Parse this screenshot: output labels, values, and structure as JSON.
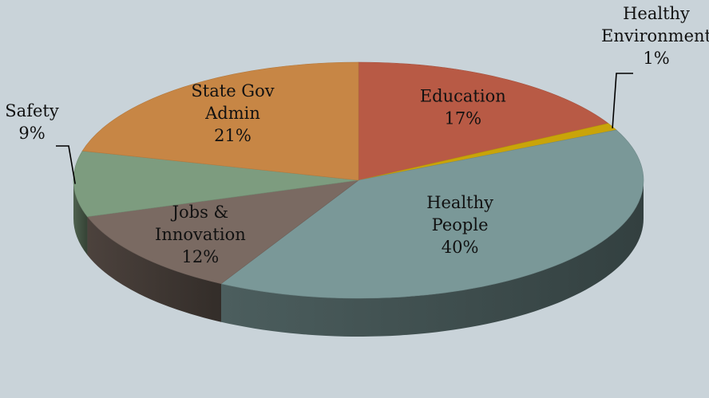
{
  "chart_data": {
    "type": "pie",
    "style": "3d",
    "background": "#c9d3d9",
    "slices": [
      {
        "label": [
          "Education"
        ],
        "value": 17,
        "value_label": "17%",
        "color": "#b85a45",
        "label_position": "inside"
      },
      {
        "label": [
          "Healthy",
          "Environment"
        ],
        "value": 1,
        "value_label": "1%",
        "color": "#c9a409",
        "label_position": "outside"
      },
      {
        "label": [
          "Healthy",
          "People"
        ],
        "value": 40,
        "value_label": "40%",
        "color": "#7a9898",
        "label_position": "inside"
      },
      {
        "label": [
          "Jobs &",
          "Innovation"
        ],
        "value": 12,
        "value_label": "12%",
        "color": "#7a6a62",
        "label_position": "inside"
      },
      {
        "label": [
          "Safety"
        ],
        "value": 9,
        "value_label": "9%",
        "color": "#7d9c7f",
        "label_position": "outside"
      },
      {
        "label": [
          "State Gov",
          "Admin"
        ],
        "value": 21,
        "value_label": "21%",
        "color": "#c78645",
        "label_position": "inside"
      }
    ]
  }
}
